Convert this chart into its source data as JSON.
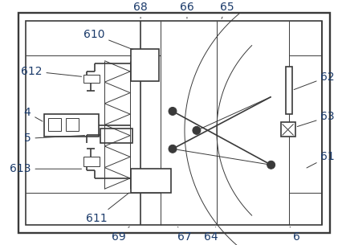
{
  "figsize": [
    4.26,
    3.05
  ],
  "dpi": 100,
  "bg_color": "#ffffff",
  "line_color": "#3a3a3a",
  "lw": 1.2,
  "lw_thin": 0.7,
  "label_fontsize": 10,
  "label_color": "#1a3a6a"
}
